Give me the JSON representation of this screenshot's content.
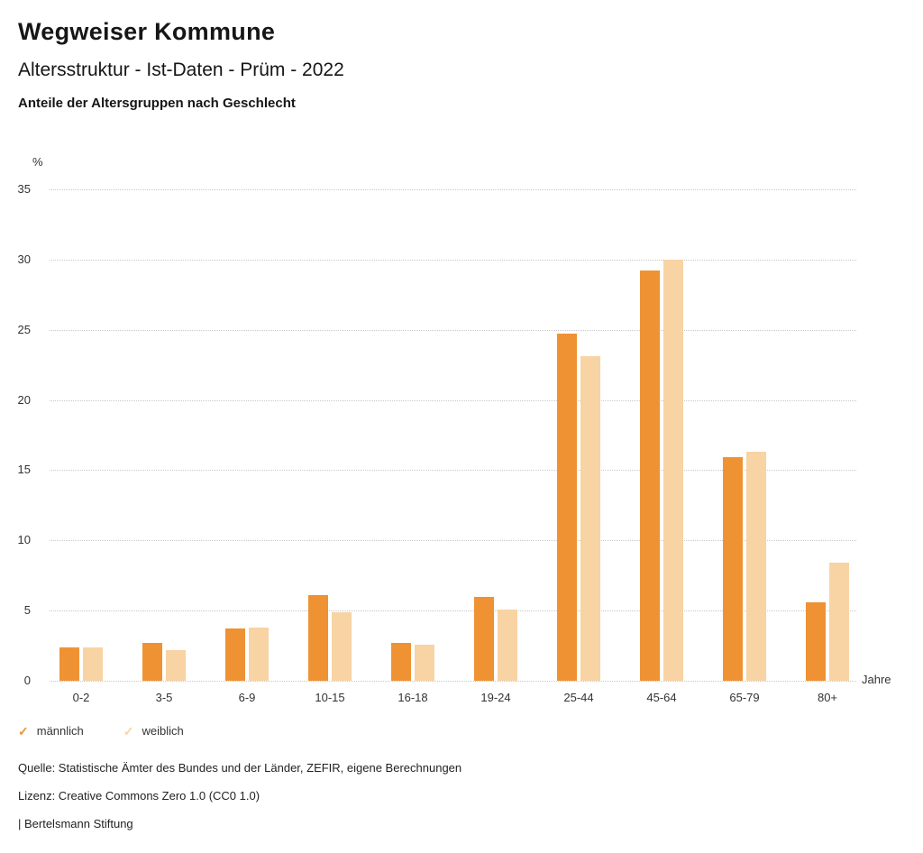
{
  "header": {
    "title": "Wegweiser Kommune",
    "subtitle": "Altersstruktur - Ist-Daten - Prüm - 2022",
    "chart_heading": "Anteile der Altersgruppen nach Geschlecht"
  },
  "chart_data": {
    "type": "bar",
    "categories": [
      "0-2",
      "3-5",
      "6-9",
      "10-15",
      "16-18",
      "19-24",
      "25-44",
      "45-64",
      "65-79",
      "80+"
    ],
    "series": [
      {
        "name": "männlich",
        "color": "#ef9234",
        "values": [
          2.4,
          2.7,
          3.7,
          6.1,
          2.7,
          6.0,
          24.7,
          29.2,
          15.9,
          5.6
        ]
      },
      {
        "name": "weiblich",
        "color": "#f8d3a4",
        "values": [
          2.4,
          2.2,
          3.8,
          4.9,
          2.6,
          5.1,
          23.1,
          30.0,
          16.3,
          8.4
        ]
      }
    ],
    "title": "Anteile der Altersgruppen nach Geschlecht",
    "xlabel": "Jahre",
    "ylabel": "%",
    "ylim": [
      0,
      35
    ],
    "ytick_step": 5,
    "grid": true,
    "legend_position": "bottom"
  },
  "legend": {
    "check_glyph": "✓"
  },
  "footer": {
    "source": "Quelle: Statistische Ämter des Bundes und der Länder, ZEFIR, eigene Berechnungen",
    "license": "Lizenz: Creative Commons Zero 1.0 (CC0 1.0)",
    "attribution": "| Bertelsmann Stiftung"
  }
}
